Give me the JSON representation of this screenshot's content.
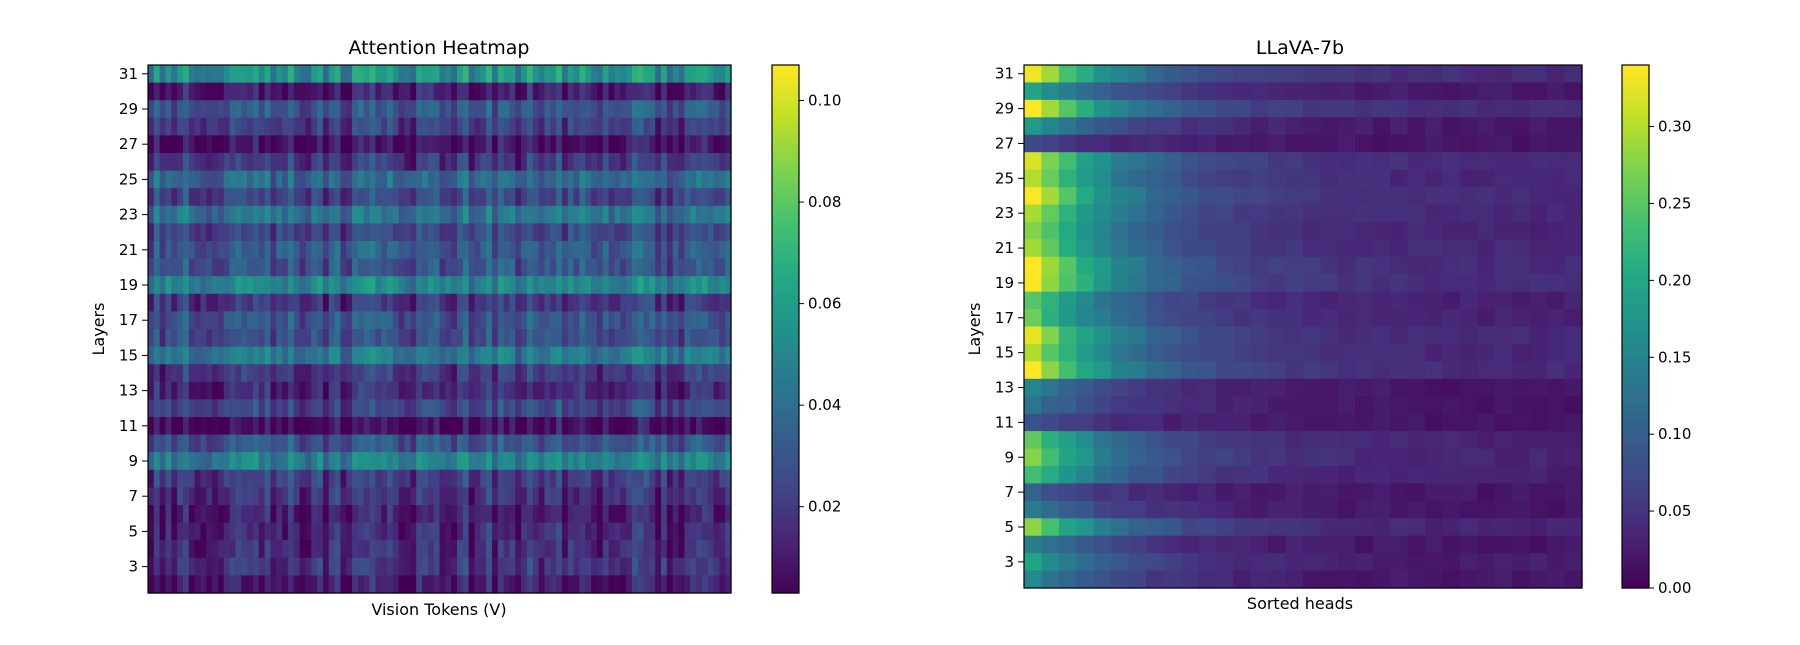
{
  "colormap": "viridis",
  "chart_data": [
    {
      "type": "heatmap",
      "title": "Attention Heatmap",
      "xlabel": "Vision Tokens (V)",
      "ylabel": "Layers",
      "y_tick_labels": [
        "31",
        "29",
        "27",
        "25",
        "23",
        "21",
        "19",
        "17",
        "15",
        "13",
        "11",
        "9",
        "7",
        "5",
        "3"
      ],
      "rows_top_to_bottom": [
        31,
        30,
        29,
        28,
        27,
        26,
        25,
        24,
        23,
        22,
        21,
        20,
        19,
        18,
        17,
        16,
        15,
        14,
        13,
        12,
        11,
        10,
        9,
        8,
        7,
        6,
        5,
        4,
        3,
        2
      ],
      "x_tick_labels": [],
      "num_columns": 100,
      "row_mean_values": [
        0.055,
        0.012,
        0.03,
        0.022,
        0.008,
        0.02,
        0.038,
        0.025,
        0.042,
        0.025,
        0.033,
        0.03,
        0.05,
        0.02,
        0.03,
        0.028,
        0.045,
        0.02,
        0.015,
        0.025,
        0.005,
        0.03,
        0.048,
        0.022,
        0.018,
        0.012,
        0.014,
        0.016,
        0.018,
        0.01
      ],
      "colorbar": {
        "min": 0.003,
        "max": 0.107,
        "tick_labels": [
          "0.10",
          "0.08",
          "0.06",
          "0.04",
          "0.02"
        ],
        "ticks": [
          0.1,
          0.08,
          0.06,
          0.04,
          0.02
        ]
      }
    },
    {
      "type": "heatmap",
      "title": "LLaVA-7b",
      "xlabel": "Sorted heads",
      "ylabel": "Layers",
      "y_tick_labels": [
        "31",
        "29",
        "27",
        "25",
        "23",
        "21",
        "19",
        "17",
        "15",
        "13",
        "11",
        "9",
        "7",
        "5",
        "3"
      ],
      "rows_top_to_bottom": [
        31,
        30,
        29,
        28,
        27,
        26,
        25,
        24,
        23,
        22,
        21,
        20,
        19,
        18,
        17,
        16,
        15,
        14,
        13,
        12,
        11,
        10,
        9,
        8,
        7,
        6,
        5,
        4,
        3,
        2
      ],
      "x_tick_labels": [],
      "num_columns": 32,
      "row_first_values": [
        0.34,
        0.2,
        0.34,
        0.18,
        0.07,
        0.32,
        0.3,
        0.34,
        0.3,
        0.28,
        0.3,
        0.34,
        0.34,
        0.25,
        0.26,
        0.32,
        0.3,
        0.34,
        0.15,
        0.13,
        0.08,
        0.26,
        0.28,
        0.24,
        0.1,
        0.14,
        0.28,
        0.15,
        0.2,
        0.16
      ],
      "colorbar": {
        "min": 0.0,
        "max": 0.34,
        "tick_labels": [
          "0.30",
          "0.25",
          "0.20",
          "0.15",
          "0.10",
          "0.05",
          "0.00"
        ],
        "ticks": [
          0.3,
          0.25,
          0.2,
          0.15,
          0.1,
          0.05,
          0.0
        ]
      }
    }
  ]
}
